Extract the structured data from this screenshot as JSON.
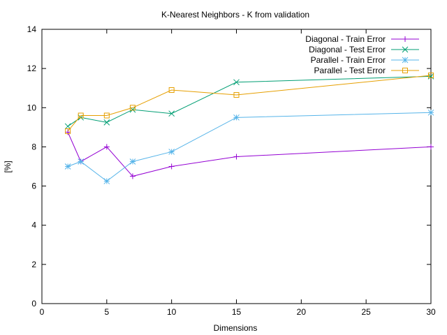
{
  "chart_data": {
    "type": "line",
    "title": "K-Nearest Neighbors - K from validation",
    "xlabel": "Dimensions",
    "ylabel": "[%]",
    "xlim": [
      0,
      30
    ],
    "ylim": [
      0,
      14
    ],
    "xticks": [
      0,
      5,
      10,
      15,
      20,
      25,
      30
    ],
    "yticks": [
      0,
      2,
      4,
      6,
      8,
      10,
      12,
      14
    ],
    "grid": false,
    "legend_position": "top-right",
    "series": [
      {
        "name": "Diagonal - Train Error",
        "color": "#9400d3",
        "marker": "plus",
        "x": [
          2,
          3,
          5,
          7,
          10,
          15,
          30
        ],
        "y": [
          8.75,
          7.25,
          8.0,
          6.5,
          7.0,
          7.5,
          8.0
        ]
      },
      {
        "name": "Diagonal - Test Error",
        "color": "#009e73",
        "marker": "cross",
        "x": [
          2,
          3,
          5,
          7,
          10,
          15,
          30
        ],
        "y": [
          9.05,
          9.5,
          9.25,
          9.9,
          9.7,
          11.3,
          11.6
        ]
      },
      {
        "name": "Parallel - Train Error",
        "color": "#56b4e9",
        "marker": "star",
        "x": [
          2,
          3,
          5,
          7,
          10,
          15,
          30
        ],
        "y": [
          7.0,
          7.25,
          6.25,
          7.25,
          7.75,
          9.5,
          9.75
        ]
      },
      {
        "name": "Parallel - Test Error",
        "color": "#e69f00",
        "marker": "square",
        "x": [
          2,
          3,
          5,
          7,
          10,
          15,
          30
        ],
        "y": [
          8.8,
          9.6,
          9.6,
          10.0,
          10.9,
          10.65,
          11.65
        ]
      }
    ]
  }
}
